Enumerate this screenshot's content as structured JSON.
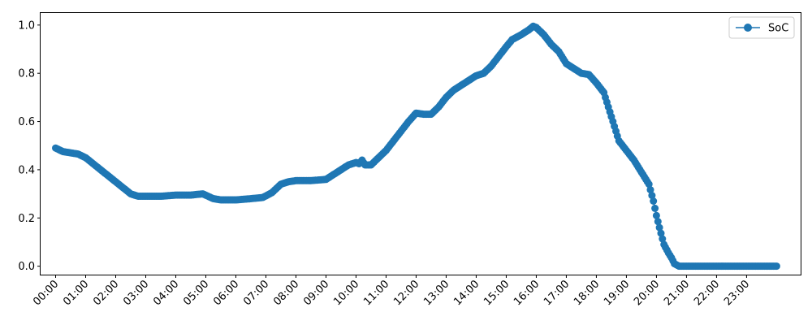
{
  "chart_data": {
    "type": "line",
    "title": "",
    "xlabel": "",
    "ylabel": "",
    "x_unit": "hours (time of day)",
    "xlim": [
      "-0.5h",
      "24.8h"
    ],
    "ylim": [
      -0.035,
      1.05
    ],
    "x_ticks": [
      "00:00",
      "01:00",
      "02:00",
      "03:00",
      "04:00",
      "05:00",
      "06:00",
      "07:00",
      "08:00",
      "09:00",
      "10:00",
      "11:00",
      "12:00",
      "13:00",
      "14:00",
      "15:00",
      "16:00",
      "17:00",
      "18:00",
      "19:00",
      "20:00",
      "21:00",
      "22:00",
      "23:00"
    ],
    "y_ticks": [
      "0.0",
      "0.2",
      "0.4",
      "0.6",
      "0.8",
      "1.0"
    ],
    "y_tick_values": [
      0.0,
      0.2,
      0.4,
      0.6,
      0.8,
      1.0
    ],
    "grid": false,
    "legend_position": "top-right",
    "marker": "circle",
    "series": [
      {
        "name": "SoC",
        "color": "#1f77b4",
        "points": [
          [
            0.0,
            0.49
          ],
          [
            0.25,
            0.475
          ],
          [
            0.5,
            0.47
          ],
          [
            0.75,
            0.465
          ],
          [
            1.0,
            0.45
          ],
          [
            1.25,
            0.425
          ],
          [
            1.5,
            0.4
          ],
          [
            1.75,
            0.375
          ],
          [
            2.0,
            0.35
          ],
          [
            2.25,
            0.325
          ],
          [
            2.5,
            0.3
          ],
          [
            2.75,
            0.29
          ],
          [
            3.0,
            0.29
          ],
          [
            3.5,
            0.29
          ],
          [
            4.0,
            0.295
          ],
          [
            4.5,
            0.295
          ],
          [
            4.9,
            0.3
          ],
          [
            5.25,
            0.28
          ],
          [
            5.5,
            0.275
          ],
          [
            6.0,
            0.275
          ],
          [
            6.5,
            0.28
          ],
          [
            6.9,
            0.285
          ],
          [
            7.2,
            0.305
          ],
          [
            7.5,
            0.34
          ],
          [
            7.75,
            0.35
          ],
          [
            8.0,
            0.355
          ],
          [
            8.5,
            0.355
          ],
          [
            9.0,
            0.36
          ],
          [
            9.25,
            0.38
          ],
          [
            9.5,
            0.4
          ],
          [
            9.75,
            0.42
          ],
          [
            10.0,
            0.43
          ],
          [
            10.1,
            0.425
          ],
          [
            10.2,
            0.44
          ],
          [
            10.3,
            0.42
          ],
          [
            10.5,
            0.42
          ],
          [
            10.75,
            0.45
          ],
          [
            11.0,
            0.48
          ],
          [
            11.25,
            0.52
          ],
          [
            11.5,
            0.56
          ],
          [
            11.75,
            0.6
          ],
          [
            12.0,
            0.635
          ],
          [
            12.25,
            0.63
          ],
          [
            12.5,
            0.63
          ],
          [
            12.75,
            0.66
          ],
          [
            13.0,
            0.7
          ],
          [
            13.25,
            0.73
          ],
          [
            13.5,
            0.75
          ],
          [
            13.75,
            0.77
          ],
          [
            14.0,
            0.79
          ],
          [
            14.25,
            0.8
          ],
          [
            14.5,
            0.83
          ],
          [
            14.75,
            0.87
          ],
          [
            15.0,
            0.91
          ],
          [
            15.2,
            0.94
          ],
          [
            15.5,
            0.96
          ],
          [
            15.75,
            0.98
          ],
          [
            15.9,
            0.995
          ],
          [
            16.0,
            0.99
          ],
          [
            16.25,
            0.96
          ],
          [
            16.5,
            0.92
          ],
          [
            16.75,
            0.89
          ],
          [
            17.0,
            0.84
          ],
          [
            17.25,
            0.82
          ],
          [
            17.5,
            0.8
          ],
          [
            17.75,
            0.795
          ],
          [
            18.0,
            0.76
          ],
          [
            18.25,
            0.72
          ],
          [
            18.5,
            0.62
          ],
          [
            18.75,
            0.52
          ],
          [
            19.0,
            0.48
          ],
          [
            19.25,
            0.44
          ],
          [
            19.5,
            0.39
          ],
          [
            19.75,
            0.34
          ],
          [
            19.9,
            0.27
          ],
          [
            20.0,
            0.21
          ],
          [
            20.1,
            0.16
          ],
          [
            20.25,
            0.09
          ],
          [
            20.4,
            0.055
          ],
          [
            20.5,
            0.035
          ],
          [
            20.6,
            0.01
          ],
          [
            20.75,
            0.0
          ],
          [
            21.0,
            0.0
          ],
          [
            22.0,
            0.0
          ],
          [
            23.0,
            0.0
          ],
          [
            24.0,
            0.0
          ]
        ]
      }
    ]
  }
}
